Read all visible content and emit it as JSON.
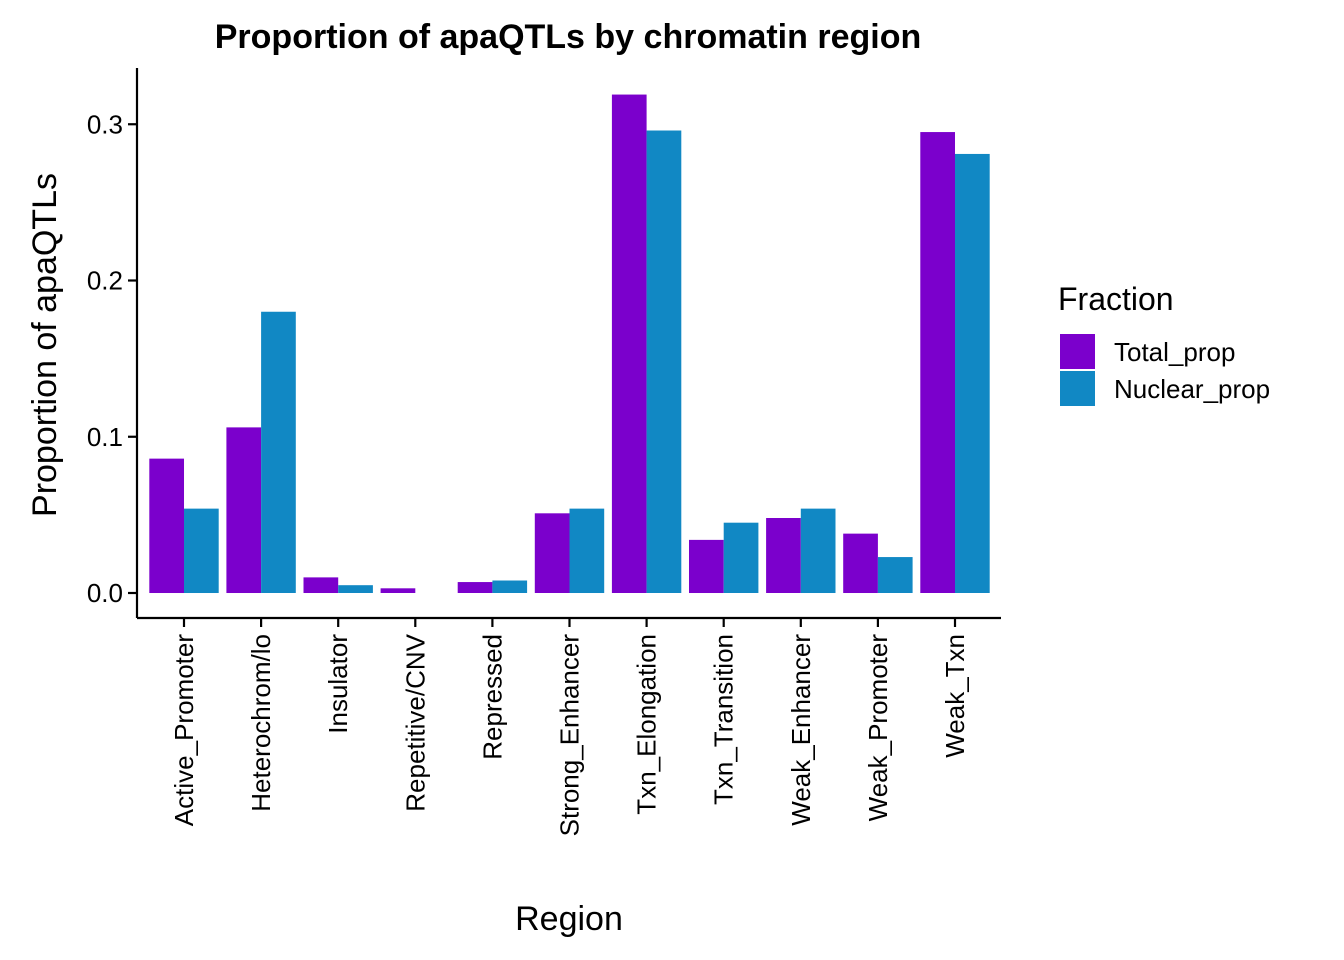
{
  "chart_data": {
    "type": "bar",
    "title": "Proportion of apaQTLs by chromatin region",
    "xlabel": "Region",
    "ylabel": "Proportion of apaQTLs",
    "ylim": [
      -0.016,
      0.336
    ],
    "yticks": [
      0.0,
      0.1,
      0.2,
      0.3
    ],
    "ytick_labels": [
      "0.0",
      "0.1",
      "0.2",
      "0.3"
    ],
    "categories": [
      "Active_Promoter",
      "Heterochrom/lo",
      "Insulator",
      "Repetitive/CNV",
      "Repressed",
      "Strong_Enhancer",
      "Txn_Elongation",
      "Txn_Transition",
      "Weak_Enhancer",
      "Weak_Promoter",
      "Weak_Txn"
    ],
    "series": [
      {
        "name": "Total_prop",
        "color": "#7B00CC",
        "values": [
          0.086,
          0.106,
          0.01,
          0.003,
          0.007,
          0.051,
          0.319,
          0.034,
          0.048,
          0.038,
          0.295
        ]
      },
      {
        "name": "Nuclear_prop",
        "color": "#1188C4",
        "values": [
          0.054,
          0.18,
          0.005,
          0.0,
          0.008,
          0.054,
          0.296,
          0.045,
          0.054,
          0.023,
          0.281
        ]
      }
    ],
    "legend": {
      "title": "Fraction",
      "position": "right"
    },
    "grid": false
  }
}
